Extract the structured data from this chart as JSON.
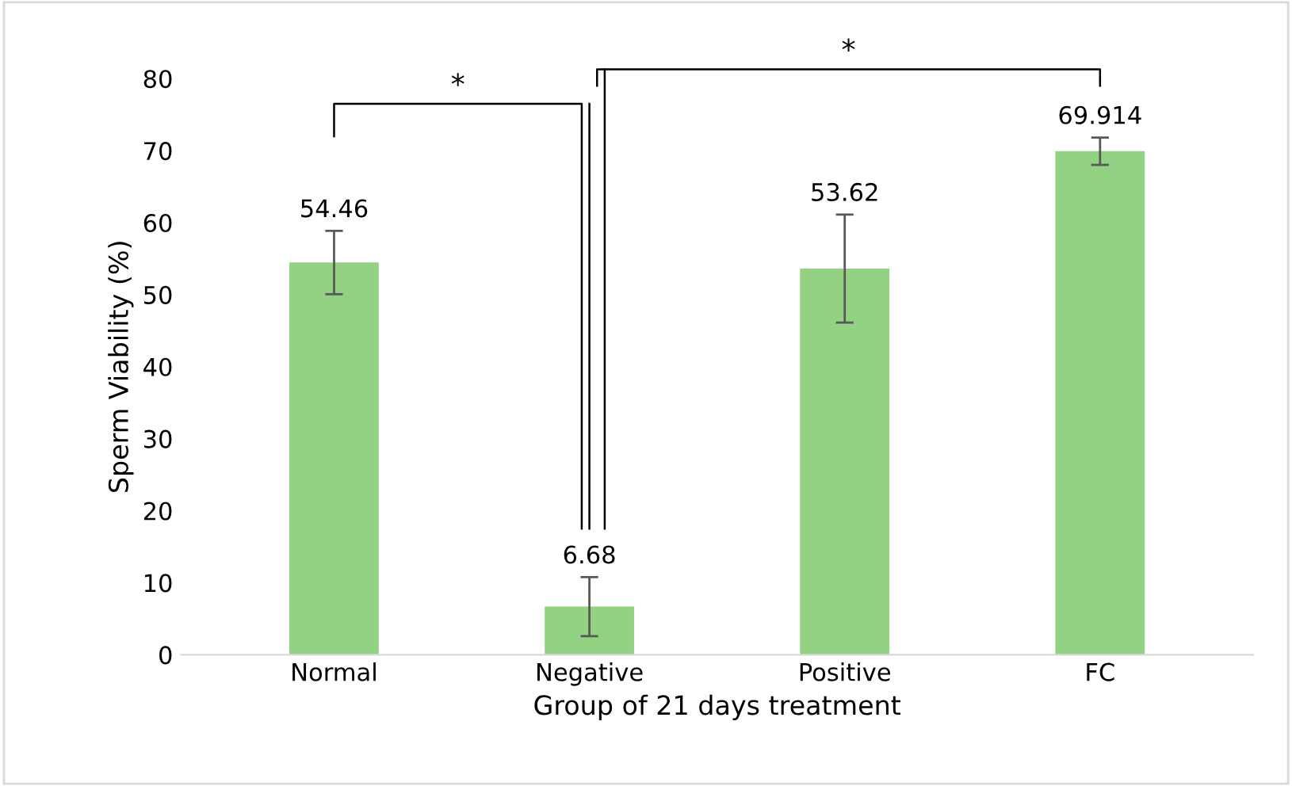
{
  "chart_data": {
    "type": "bar",
    "xlabel": "Group of 21 days treatment",
    "ylabel": "Sperm Viability (%)",
    "categories": [
      "Normal",
      "Negative",
      "Positive",
      "FC"
    ],
    "values": [
      54.46,
      6.68,
      53.62,
      69.914
    ],
    "color": "#92d282",
    "errors": [
      4.4,
      4.1,
      7.5,
      1.9
    ],
    "data_labels": true,
    "ylim": [
      0,
      80
    ],
    "yticks": [
      0,
      10,
      20,
      30,
      40,
      50,
      60,
      70,
      80
    ],
    "annotations": [
      "*",
      "*"
    ]
  }
}
